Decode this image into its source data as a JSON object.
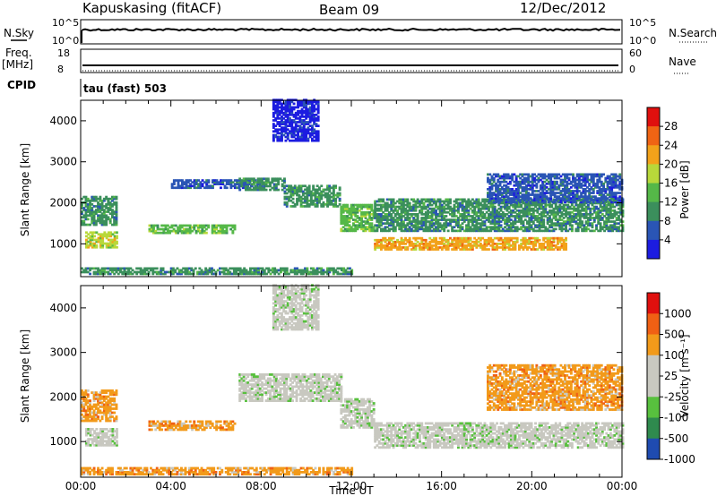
{
  "header": {
    "station": "Kapuskasing (fitACF)",
    "beam": "Beam 09",
    "date": "12/Dec/2012"
  },
  "top_panels": {
    "nsky_label": "N.Sky",
    "nsky_ticks": [
      "10^5",
      "10^0"
    ],
    "nsearch_label": "N.Search",
    "nsearch_ticks": [
      "10^5",
      "10^0"
    ],
    "freq_label": "Freq.",
    "freq_unit": "[MHz]",
    "freq_ticks": [
      "18",
      "8"
    ],
    "nave_label": "Nave",
    "nave_ticks": [
      "60",
      "0"
    ],
    "cpid_label": "CPID",
    "cpid_value": "tau (fast) 503"
  },
  "chart_data": [
    {
      "type": "heatmap",
      "name": "power-panel",
      "ylabel": "Slant Range [km]",
      "yticks": [
        "1000",
        "2000",
        "3000",
        "4000"
      ],
      "ylim": [
        200,
        4500
      ],
      "xlim": [
        0,
        24
      ],
      "colorbar": {
        "label": "Power [dB]",
        "ticks": [
          "4",
          "8",
          "12",
          "16",
          "20",
          "24",
          "28"
        ],
        "colors": [
          "#1c1ce0",
          "#2a55b5",
          "#3b8f5c",
          "#55b848",
          "#b8d83a",
          "#f2a21a",
          "#f06414",
          "#e0100e"
        ]
      },
      "bands": [
        {
          "t0": 0.0,
          "t1": 1.6,
          "r0": 1450,
          "r1": 2150,
          "level": 2
        },
        {
          "t0": 0.2,
          "t1": 1.6,
          "r0": 900,
          "r1": 1300,
          "level": 4
        },
        {
          "t0": 3.0,
          "t1": 6.8,
          "r0": 1250,
          "r1": 1450,
          "level": 3
        },
        {
          "t0": 4.0,
          "t1": 8.0,
          "r0": 2350,
          "r1": 2550,
          "level": 1
        },
        {
          "t0": 7.0,
          "t1": 9.0,
          "r0": 2300,
          "r1": 2600,
          "level": 2
        },
        {
          "t0": 9.0,
          "t1": 11.5,
          "r0": 1900,
          "r1": 2400,
          "level": 2
        },
        {
          "t0": 11.5,
          "t1": 13.0,
          "r0": 1300,
          "r1": 1950,
          "level": 3
        },
        {
          "t0": 13.0,
          "t1": 21.5,
          "r0": 850,
          "r1": 1150,
          "level": 5
        },
        {
          "t0": 13.0,
          "t1": 24.0,
          "r0": 1300,
          "r1": 2100,
          "level": 2
        },
        {
          "t0": 18.0,
          "t1": 24.0,
          "r0": 2000,
          "r1": 2700,
          "level": 1
        },
        {
          "t0": 8.5,
          "t1": 10.5,
          "r0": 3500,
          "r1": 4500,
          "level": 0
        },
        {
          "t0": 0.0,
          "t1": 12.0,
          "r0": 250,
          "r1": 400,
          "level": 2
        }
      ]
    },
    {
      "type": "heatmap",
      "name": "velocity-panel",
      "ylabel": "Slant Range [km]",
      "xlabel": "Time UT",
      "xticks": [
        "00:00",
        "04:00",
        "08:00",
        "12:00",
        "16:00",
        "20:00",
        "00:00"
      ],
      "yticks": [
        "1000",
        "2000",
        "3000",
        "4000"
      ],
      "ylim": [
        200,
        4500
      ],
      "xlim": [
        0,
        24
      ],
      "colorbar": {
        "label": "Velocity [m s⁻¹]",
        "ticks": [
          "1000",
          "500",
          "100",
          "25",
          "-25",
          "-100",
          "-500",
          "-1000"
        ],
        "colors": [
          "#1f4bb0",
          "#2f8a4e",
          "#58c03e",
          "#c8c8c0",
          "#c8c8c0",
          "#f29a1a",
          "#f06014",
          "#e0100e"
        ]
      },
      "bands": [
        {
          "t0": 0.0,
          "t1": 1.6,
          "r0": 1450,
          "r1": 2150,
          "level": 5
        },
        {
          "t0": 0.2,
          "t1": 1.6,
          "r0": 900,
          "r1": 1300,
          "level": 3
        },
        {
          "t0": 3.0,
          "t1": 6.8,
          "r0": 1250,
          "r1": 1450,
          "level": 5
        },
        {
          "t0": 7.0,
          "t1": 11.5,
          "r0": 1900,
          "r1": 2500,
          "level": 3
        },
        {
          "t0": 11.5,
          "t1": 13.0,
          "r0": 1300,
          "r1": 1950,
          "level": 3
        },
        {
          "t0": 13.0,
          "t1": 24.0,
          "r0": 850,
          "r1": 1400,
          "level": 3
        },
        {
          "t0": 18.0,
          "t1": 24.0,
          "r0": 1700,
          "r1": 2700,
          "level": 5
        },
        {
          "t0": 8.5,
          "t1": 10.5,
          "r0": 3500,
          "r1": 4500,
          "level": 3
        },
        {
          "t0": 0.0,
          "t1": 12.0,
          "r0": 250,
          "r1": 400,
          "level": 5
        }
      ]
    }
  ]
}
